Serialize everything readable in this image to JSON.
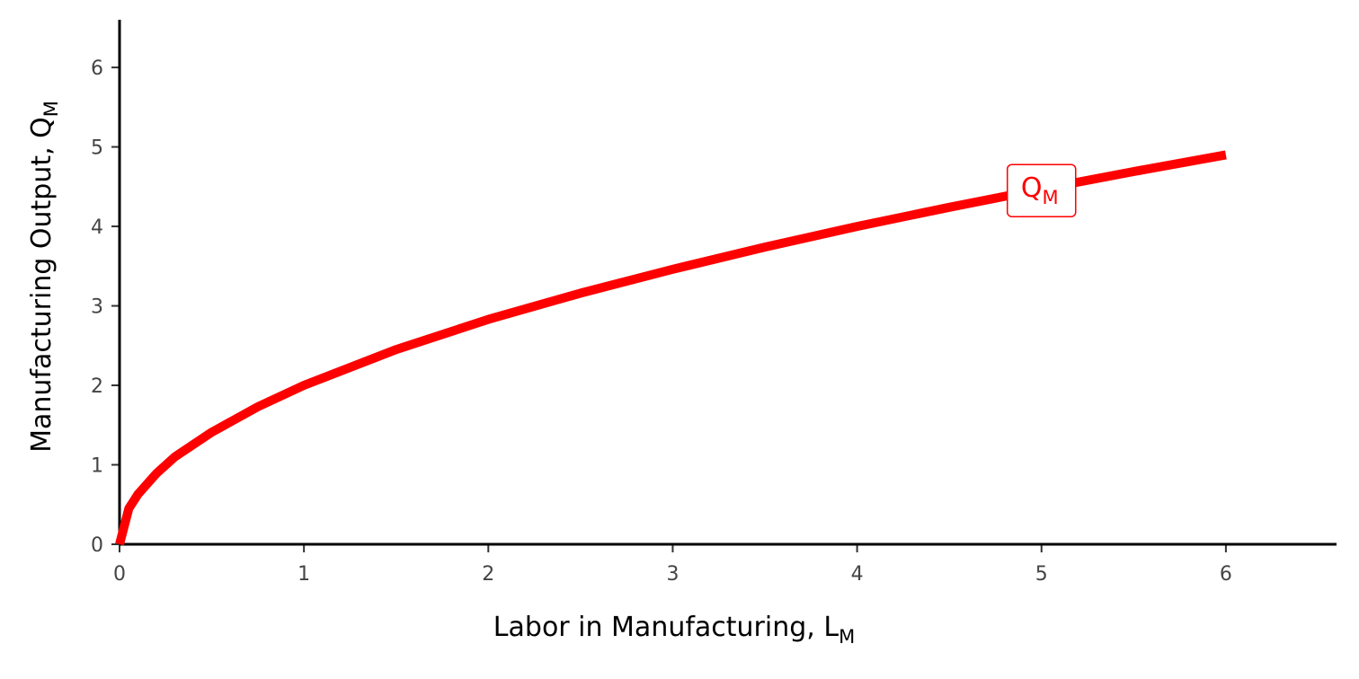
{
  "chart_data": {
    "type": "line",
    "title": "",
    "xlabel": {
      "main": "Labor in Manufacturing, L",
      "subscript": "M"
    },
    "ylabel": {
      "main": "Manufacturing Output, Q",
      "subscript": "M"
    },
    "xlim": [
      0,
      6.6
    ],
    "ylim": [
      0,
      6.6
    ],
    "xticks": [
      0,
      1,
      2,
      3,
      4,
      5,
      6
    ],
    "yticks": [
      0,
      1,
      2,
      3,
      4,
      5,
      6
    ],
    "grid": false,
    "legend": "none",
    "series": [
      {
        "name_main": "Q",
        "name_subscript": "M",
        "color": "#ff0000",
        "x": [
          0,
          0.05,
          0.1,
          0.2,
          0.3,
          0.5,
          0.75,
          1,
          1.5,
          2,
          2.5,
          3,
          3.5,
          4,
          4.5,
          5,
          5.5,
          6
        ],
        "y": [
          0,
          0.45,
          0.63,
          0.89,
          1.1,
          1.41,
          1.73,
          2.0,
          2.45,
          2.83,
          3.16,
          3.46,
          3.74,
          4.0,
          4.24,
          4.47,
          4.69,
          4.9
        ]
      }
    ],
    "annotations": [
      {
        "text_main": "Q",
        "text_subscript": "M",
        "x": 5,
        "y": 4.45,
        "color": "#ff0000"
      }
    ]
  }
}
